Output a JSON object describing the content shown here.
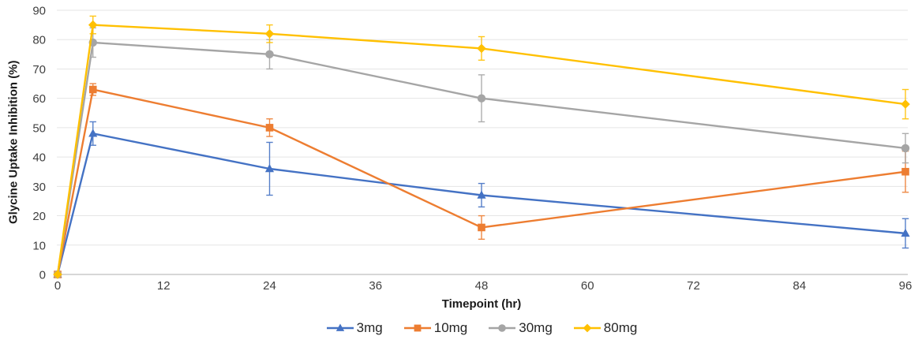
{
  "chart_data": {
    "type": "line",
    "title": "",
    "ylabel": "Glycine Uptake Inhibition (%)",
    "xlabel": "Timepoint (hr)",
    "x": [
      0,
      4,
      24,
      48,
      96
    ],
    "x_ticks": [
      0,
      12,
      24,
      36,
      48,
      60,
      72,
      84,
      96
    ],
    "y_ticks": [
      0,
      10,
      20,
      30,
      40,
      50,
      60,
      70,
      80,
      90
    ],
    "xlim": [
      0,
      96
    ],
    "ylim": [
      0,
      90
    ],
    "grid": "horizontal",
    "legend_position": "bottom",
    "error_bars": true,
    "series": [
      {
        "name": "3mg",
        "color": "#4472C4",
        "marker": "triangle",
        "values": [
          0,
          48,
          36,
          27,
          14
        ],
        "errors": [
          0,
          4,
          9,
          4,
          5
        ]
      },
      {
        "name": "10mg",
        "color": "#ED7D31",
        "marker": "square",
        "values": [
          0,
          63,
          50,
          16,
          35
        ],
        "errors": [
          0,
          2,
          3,
          4,
          7
        ]
      },
      {
        "name": "30mg",
        "color": "#A5A5A5",
        "marker": "circle",
        "values": [
          0,
          79,
          75,
          60,
          43
        ],
        "errors": [
          0,
          5,
          5,
          8,
          5
        ]
      },
      {
        "name": "80mg",
        "color": "#FFC000",
        "marker": "diamond",
        "values": [
          0,
          85,
          82,
          77,
          58
        ],
        "errors": [
          0,
          3,
          3,
          4,
          5
        ]
      }
    ],
    "colors": {
      "gridline": "#E5E5E5",
      "axis_line": "#BFBFBF",
      "tick_label": "#404040",
      "axis_title": "#1A1A1A",
      "legend_text": "#262626"
    }
  }
}
